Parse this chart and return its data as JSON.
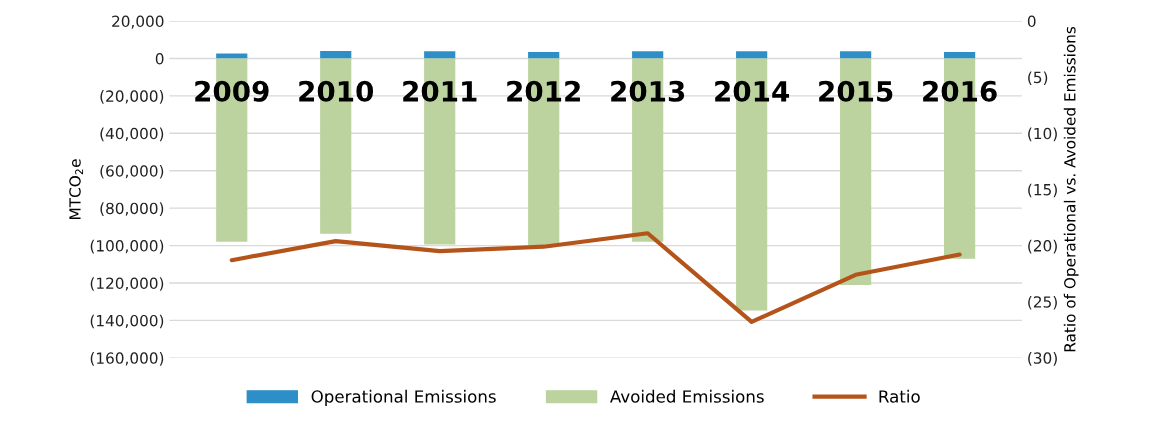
{
  "chart_data": {
    "type": "bar",
    "stacked": true,
    "categories": [
      "2009",
      "2010",
      "2011",
      "2012",
      "2013",
      "2014",
      "2015",
      "2016"
    ],
    "ylabel": "MTCO$_{2}$e",
    "y2label": "Ratio of Operational vs. Avoided Emissions",
    "series": [
      {
        "name": "Operational Emissions",
        "color": "#2e8fc8",
        "values": [
          2700,
          4000,
          3800,
          3400,
          3800,
          3800,
          3800,
          3400
        ]
      },
      {
        "name": "Avoided Emissions",
        "color": "#bcd39f",
        "values": [
          -98000,
          -93700,
          -99400,
          -100000,
          -98000,
          -134700,
          -121000,
          -107000
        ]
      },
      {
        "name": "Ratio",
        "type": "line",
        "axis": "y2",
        "color": "#b5541a",
        "values": [
          -21.3,
          -19.6,
          -20.5,
          -20.1,
          -18.9,
          -26.8,
          -22.6,
          -20.8
        ]
      }
    ],
    "ylim": [
      -160000,
      20000
    ],
    "yticks": [
      {
        "value": -160000,
        "label": "(160,000)"
      },
      {
        "value": -140000,
        "label": "(140,000)"
      },
      {
        "value": -120000,
        "label": "(120,000)"
      },
      {
        "value": -100000,
        "label": "(100,000)"
      },
      {
        "value": -80000,
        "label": "(80,000)"
      },
      {
        "value": -60000,
        "label": "(60,000)"
      },
      {
        "value": -40000,
        "label": "(40,000)"
      },
      {
        "value": -20000,
        "label": "(20,000)"
      },
      {
        "value": 0,
        "label": "0"
      },
      {
        "value": 20000,
        "label": "20,000"
      }
    ],
    "y2lim": [
      -30,
      0
    ],
    "y2ticks": [
      {
        "value": -30,
        "label": "(30)"
      },
      {
        "value": -25,
        "label": "(25)"
      },
      {
        "value": -20,
        "label": "(20)"
      },
      {
        "value": -15,
        "label": "(15)"
      },
      {
        "value": -10,
        "label": "(10)"
      },
      {
        "value": -5,
        "label": "(5)"
      },
      {
        "value": 0,
        "label": "0"
      }
    ],
    "grid": "y",
    "legend": "bottom",
    "line_style": "solid",
    "marker": "none"
  }
}
